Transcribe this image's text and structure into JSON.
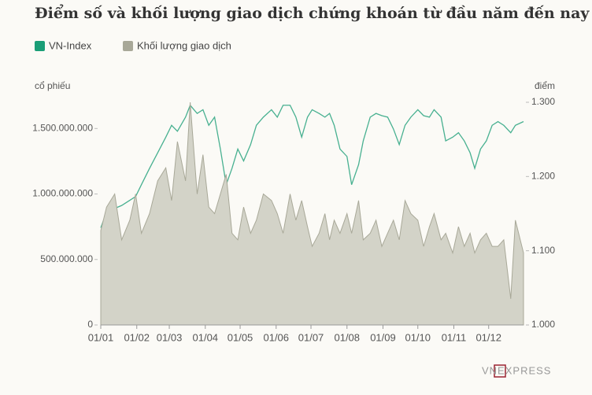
{
  "chart_data": {
    "type": "line",
    "title": "Điểm số và khối lượng giao dịch chứng khoán từ đầu năm đến nay",
    "ylabel": "cổ phiếu",
    "y2label": "điểm",
    "x": [
      0,
      5,
      12,
      18,
      25,
      30,
      35,
      42,
      49,
      56,
      61,
      66,
      73,
      77,
      83,
      88,
      93,
      98,
      103,
      108,
      113,
      118,
      123,
      129,
      134,
      140,
      147,
      152,
      157,
      163,
      168,
      173,
      178,
      182,
      188,
      193,
      197,
      201,
      206,
      212,
      216,
      222,
      226,
      232,
      237,
      242,
      247,
      252,
      257,
      262,
      267,
      273,
      278,
      283,
      287,
      293,
      297,
      303,
      308,
      313,
      318,
      322,
      327,
      332,
      337,
      342,
      347,
      353,
      357,
      364
    ],
    "xlim": [
      0,
      364
    ],
    "xticks": [
      {
        "value": 0,
        "label": "01/01"
      },
      {
        "value": 31,
        "label": "01/02"
      },
      {
        "value": 59,
        "label": "01/03"
      },
      {
        "value": 90,
        "label": "01/04"
      },
      {
        "value": 120,
        "label": "01/05"
      },
      {
        "value": 151,
        "label": "01/06"
      },
      {
        "value": 181,
        "label": "01/07"
      },
      {
        "value": 212,
        "label": "01/08"
      },
      {
        "value": 243,
        "label": "01/09"
      },
      {
        "value": 273,
        "label": "01/10"
      },
      {
        "value": 304,
        "label": "01/11"
      },
      {
        "value": 334,
        "label": "01/12"
      }
    ],
    "ylim": [
      0,
      1700000000
    ],
    "yticks": [
      0,
      {
        "value": 500000000,
        "label": "500.000.000"
      },
      {
        "value": 1000000000,
        "label": "1.000.000.000"
      },
      {
        "value": 1500000000,
        "label": "1.500.000.000"
      }
    ],
    "y2lim": [
      1000,
      1300
    ],
    "y2ticks": [
      {
        "value": 1000,
        "label": "1.000"
      },
      {
        "value": 1100,
        "label": "1.100"
      },
      {
        "value": 1200,
        "label": "1.200"
      },
      {
        "value": 1300,
        "label": "1.300"
      }
    ],
    "series": [
      {
        "name": "VN-Index",
        "type": "line",
        "axis": "y2",
        "color": "#1a9e77",
        "values": [
          1131,
          1152,
          1157,
          1161,
          1168,
          1173,
          1189,
          1211,
          1232,
          1253,
          1269,
          1261,
          1280,
          1296,
          1285,
          1290,
          1269,
          1280,
          1237,
          1189,
          1211,
          1237,
          1221,
          1243,
          1269,
          1280,
          1290,
          1280,
          1296,
          1296,
          1280,
          1253,
          1280,
          1290,
          1285,
          1280,
          1285,
          1269,
          1237,
          1227,
          1189,
          1216,
          1248,
          1280,
          1285,
          1282,
          1280,
          1264,
          1243,
          1269,
          1280,
          1290,
          1282,
          1280,
          1290,
          1280,
          1248,
          1253,
          1259,
          1248,
          1232,
          1211,
          1237,
          1248,
          1269,
          1274,
          1269,
          1259,
          1269,
          1274
        ]
      },
      {
        "name": "Khối lượng giao dịch",
        "type": "area",
        "axis": "y",
        "color": "#a8a898",
        "values": [
          720000000,
          900000000,
          1000000000,
          650000000,
          800000000,
          1000000000,
          700000000,
          850000000,
          1100000000,
          1200000000,
          950000000,
          1400000000,
          1100000000,
          1700000000,
          1000000000,
          1300000000,
          900000000,
          850000000,
          1000000000,
          1150000000,
          700000000,
          650000000,
          900000000,
          700000000,
          800000000,
          1000000000,
          950000000,
          850000000,
          700000000,
          1000000000,
          800000000,
          950000000,
          750000000,
          600000000,
          700000000,
          850000000,
          650000000,
          800000000,
          700000000,
          850000000,
          700000000,
          950000000,
          650000000,
          700000000,
          800000000,
          600000000,
          700000000,
          800000000,
          650000000,
          950000000,
          850000000,
          800000000,
          600000000,
          750000000,
          850000000,
          650000000,
          700000000,
          550000000,
          750000000,
          600000000,
          700000000,
          550000000,
          650000000,
          700000000,
          600000000,
          600000000,
          650000000,
          200000000,
          800000000,
          550000000
        ]
      }
    ]
  },
  "logo": "VNEXPRESS"
}
